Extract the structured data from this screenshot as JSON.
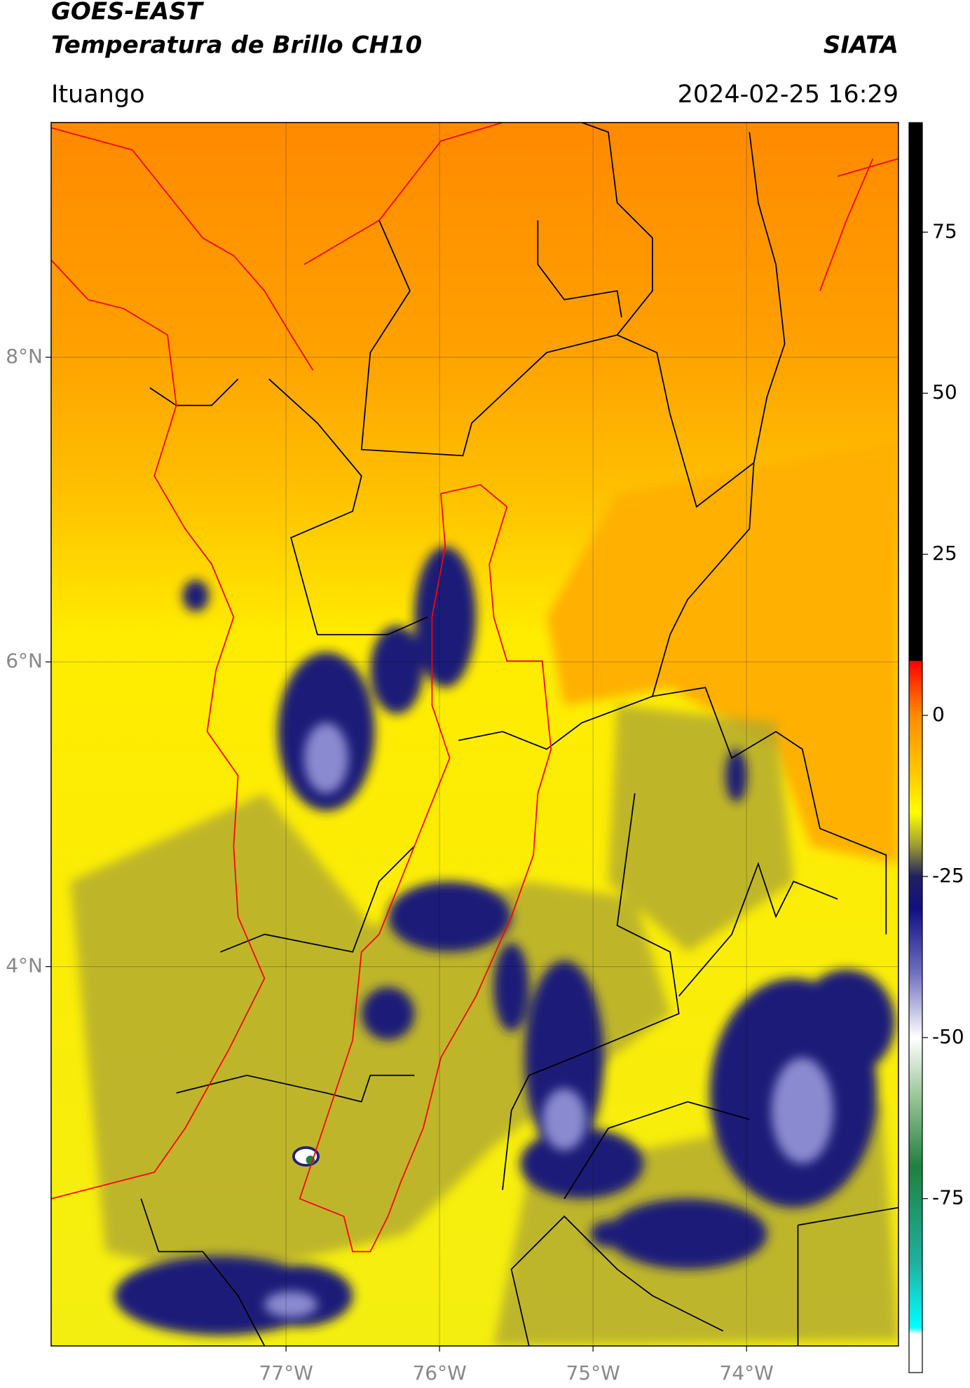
{
  "header": {
    "title": "GOES-EAST",
    "subtitle": "Temperatura de Brillo CH10",
    "brand": "SIATA",
    "location": "Ituango",
    "timestamp": "2024-02-25 16:29"
  },
  "map": {
    "lon_lim": [
      -78.53,
      -73.01
    ],
    "lat_lim": [
      1.51,
      9.54
    ],
    "grid": true,
    "lon_ticks": [
      {
        "value": -77,
        "label": "77°W"
      },
      {
        "value": -76,
        "label": "76°W"
      },
      {
        "value": -75,
        "label": "75°W"
      },
      {
        "value": -74,
        "label": "74°W"
      }
    ],
    "lat_ticks": [
      {
        "value": 8,
        "label": "8°N"
      },
      {
        "value": 6,
        "label": "6°N"
      },
      {
        "value": 4,
        "label": "4°N"
      }
    ]
  },
  "colorbar": {
    "lim": [
      -102,
      92
    ],
    "ticks": [
      75,
      50,
      25,
      0,
      -25,
      -50,
      -75
    ],
    "stops": [
      {
        "value": 92,
        "color": "#000000"
      },
      {
        "value": 8.5,
        "color": "#000000"
      },
      {
        "value": 8.4,
        "color": "#ff0000"
      },
      {
        "value": 0,
        "color": "#ff8c00"
      },
      {
        "value": -10,
        "color": "#ffd000"
      },
      {
        "value": -15,
        "color": "#ffff00"
      },
      {
        "value": -20,
        "color": "#a0a030"
      },
      {
        "value": -25,
        "color": "#202060"
      },
      {
        "value": -30,
        "color": "#101080"
      },
      {
        "value": -40,
        "color": "#7070c0"
      },
      {
        "value": -50,
        "color": "#ffffff"
      },
      {
        "value": -60,
        "color": "#90c090"
      },
      {
        "value": -70,
        "color": "#208040"
      },
      {
        "value": -85,
        "color": "#20b0a0"
      },
      {
        "value": -95,
        "color": "#00ffff"
      },
      {
        "value": -96,
        "color": "#ffffff"
      },
      {
        "value": -102,
        "color": "#ffffff"
      }
    ]
  }
}
